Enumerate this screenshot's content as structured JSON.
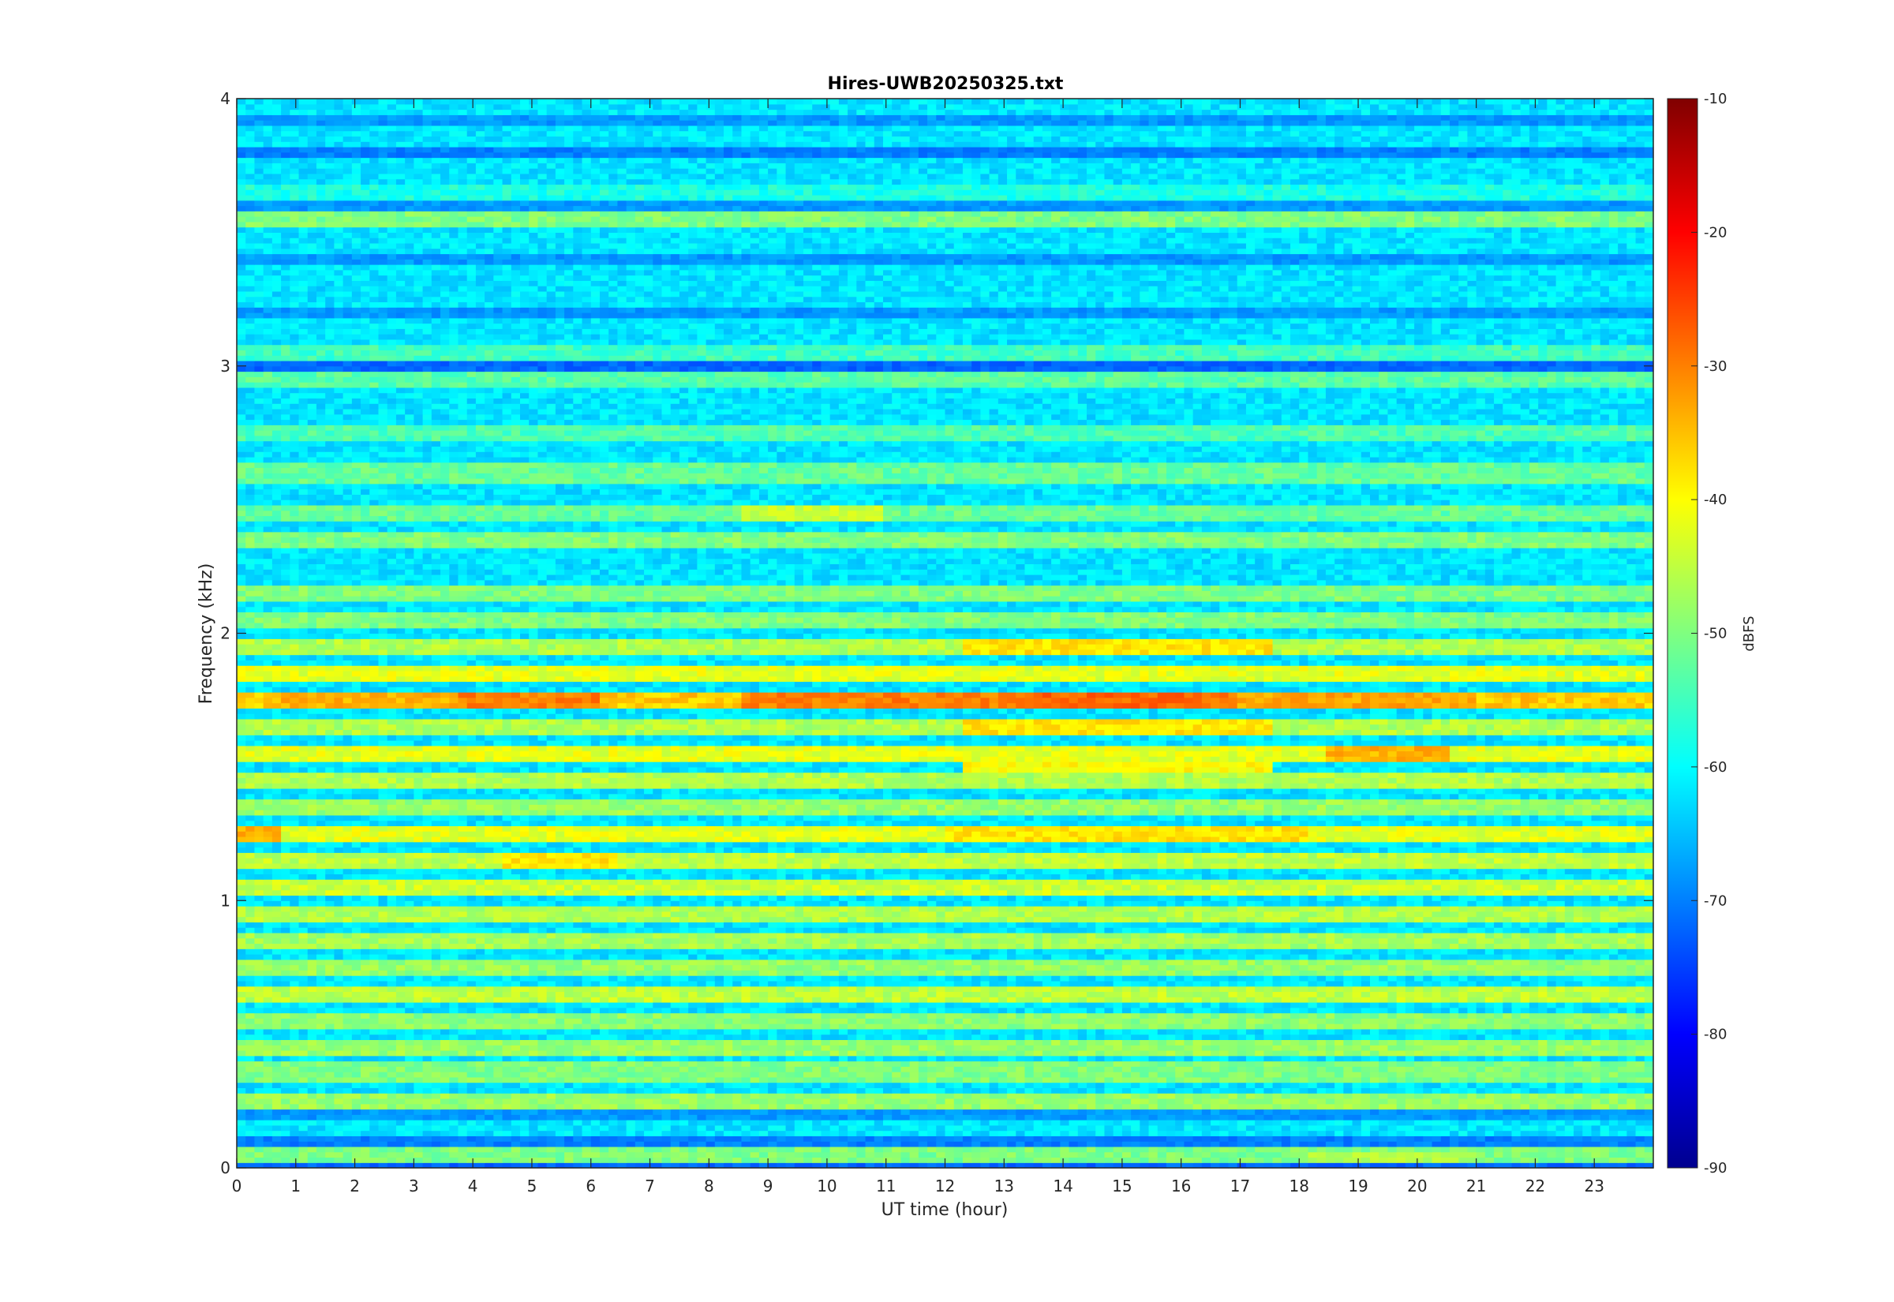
{
  "chart_data": {
    "type": "heatmap",
    "title": "Hires-UWB20250325.txt",
    "xlabel": "UT time (hour)",
    "ylabel": "Frequency (kHz)",
    "xlim": [
      0,
      24
    ],
    "ylim": [
      0,
      4
    ],
    "xticks": [
      0,
      1,
      2,
      3,
      4,
      5,
      6,
      7,
      8,
      9,
      10,
      11,
      12,
      13,
      14,
      15,
      16,
      17,
      18,
      19,
      20,
      21,
      22,
      23
    ],
    "xtick_labels": [
      "0",
      "1",
      "2",
      "3",
      "4",
      "5",
      "6",
      "7",
      "8",
      "9",
      "10",
      "11",
      "12",
      "13",
      "14",
      "15",
      "16",
      "17",
      "18",
      "19",
      "20",
      "21",
      "22",
      "23"
    ],
    "yticks": [
      0,
      1,
      2,
      3,
      4
    ],
    "ytick_labels": [
      "0",
      "1",
      "2",
      "3",
      "4"
    ],
    "colormap": "jet",
    "colorbar": {
      "label": "dBFS",
      "range": [
        -90,
        -10
      ],
      "ticks": [
        -90,
        -80,
        -70,
        -60,
        -50,
        -40,
        -30,
        -20,
        -10
      ],
      "tick_labels": [
        "-90",
        "-80",
        "-70",
        "-60",
        "-50",
        "-40",
        "-30",
        "-20",
        "-10"
      ]
    },
    "background_level_dbfs": -62,
    "bands": [
      {
        "freq_khz": 0.04,
        "level_dbfs": -50
      },
      {
        "freq_khz": 0.24,
        "level_dbfs": -48
      },
      {
        "freq_khz": 0.36,
        "level_dbfs": -50
      },
      {
        "freq_khz": 0.45,
        "level_dbfs": -48
      },
      {
        "freq_khz": 0.55,
        "level_dbfs": -49
      },
      {
        "freq_khz": 0.65,
        "level_dbfs": -45
      },
      {
        "freq_khz": 0.75,
        "level_dbfs": -48
      },
      {
        "freq_khz": 0.85,
        "level_dbfs": -47
      },
      {
        "freq_khz": 0.95,
        "level_dbfs": -46
      },
      {
        "freq_khz": 1.05,
        "level_dbfs": -44
      },
      {
        "freq_khz": 1.15,
        "level_dbfs": -45
      },
      {
        "freq_khz": 1.25,
        "level_dbfs": -42
      },
      {
        "freq_khz": 1.35,
        "level_dbfs": -48
      },
      {
        "freq_khz": 1.45,
        "level_dbfs": -46
      },
      {
        "freq_khz": 1.55,
        "level_dbfs": -42
      },
      {
        "freq_khz": 1.65,
        "level_dbfs": -46
      },
      {
        "freq_khz": 1.75,
        "level_dbfs": -36
      },
      {
        "freq_khz": 1.85,
        "level_dbfs": -42
      },
      {
        "freq_khz": 1.95,
        "level_dbfs": -46
      },
      {
        "freq_khz": 2.05,
        "level_dbfs": -50
      },
      {
        "freq_khz": 2.15,
        "level_dbfs": -50
      },
      {
        "freq_khz": 2.35,
        "level_dbfs": -50
      },
      {
        "freq_khz": 2.45,
        "level_dbfs": -52
      },
      {
        "freq_khz": 2.6,
        "level_dbfs": -52
      },
      {
        "freq_khz": 2.75,
        "level_dbfs": -54
      },
      {
        "freq_khz": 2.95,
        "level_dbfs": -53
      },
      {
        "freq_khz": 3.05,
        "level_dbfs": -55
      },
      {
        "freq_khz": 3.55,
        "level_dbfs": -50
      },
      {
        "freq_khz": 3.65,
        "level_dbfs": -58
      }
    ],
    "dark_bands": [
      {
        "freq_khz": 0.0,
        "level_dbfs": -72
      },
      {
        "freq_khz": 0.1,
        "level_dbfs": -70
      },
      {
        "freq_khz": 0.2,
        "level_dbfs": -68
      },
      {
        "freq_khz": 3.0,
        "level_dbfs": -72
      },
      {
        "freq_khz": 3.2,
        "level_dbfs": -68
      },
      {
        "freq_khz": 3.4,
        "level_dbfs": -68
      },
      {
        "freq_khz": 3.6,
        "level_dbfs": -68
      },
      {
        "freq_khz": 3.8,
        "level_dbfs": -70
      },
      {
        "freq_khz": 3.92,
        "level_dbfs": -68
      }
    ],
    "hot_regions": [
      {
        "t_start": 0.8,
        "t_end": 6.3,
        "freq_khz": 1.75,
        "level_dbfs": -34
      },
      {
        "t_start": 3.8,
        "t_end": 6.2,
        "freq_khz": 1.75,
        "level_dbfs": -30
      },
      {
        "t_start": 8.5,
        "t_end": 17.0,
        "freq_khz": 1.75,
        "level_dbfs": -30
      },
      {
        "t_start": 13.5,
        "t_end": 16.5,
        "freq_khz": 1.75,
        "level_dbfs": -28
      },
      {
        "t_start": 17.0,
        "t_end": 21.0,
        "freq_khz": 1.75,
        "level_dbfs": -33
      },
      {
        "t_start": 0.0,
        "t_end": 0.7,
        "freq_khz": 1.25,
        "level_dbfs": -34
      },
      {
        "t_start": 12.0,
        "t_end": 18.2,
        "freq_khz": 1.25,
        "level_dbfs": -38
      },
      {
        "t_start": 18.5,
        "t_end": 20.5,
        "freq_khz": 1.55,
        "level_dbfs": -34
      },
      {
        "t_start": 12.3,
        "t_end": 17.5,
        "freq_khz": 1.95,
        "level_dbfs": -38
      },
      {
        "t_start": 12.3,
        "t_end": 17.5,
        "freq_khz": 1.65,
        "level_dbfs": -38
      },
      {
        "t_start": 12.3,
        "t_end": 17.5,
        "freq_khz": 1.5,
        "level_dbfs": -40
      },
      {
        "t_start": 4.5,
        "t_end": 6.5,
        "freq_khz": 1.15,
        "level_dbfs": -38
      },
      {
        "t_start": 8.5,
        "t_end": 11.0,
        "freq_khz": 2.45,
        "level_dbfs": -44
      },
      {
        "t_start": 18.2,
        "t_end": 21.0,
        "freq_khz": 0.04,
        "level_dbfs": -46
      }
    ]
  }
}
